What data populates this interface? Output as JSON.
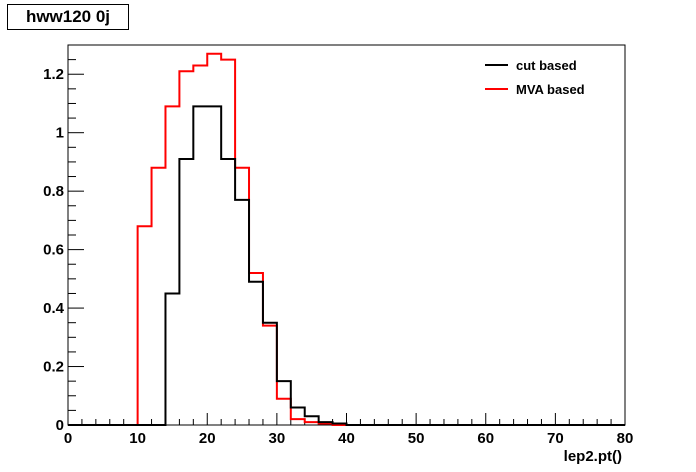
{
  "chart_data": {
    "type": "line",
    "style": "step-histogram",
    "title": "hww120 0j",
    "xlabel": "lep2.pt()",
    "ylabel": "",
    "xlim": [
      0,
      80
    ],
    "ylim": [
      0,
      1.3
    ],
    "bin_width": 2,
    "x_ticks": [
      0,
      10,
      20,
      30,
      40,
      50,
      60,
      70,
      80
    ],
    "y_ticks": [
      0,
      0.2,
      0.4,
      0.6,
      0.8,
      1,
      1.2
    ],
    "x_tick_labels": [
      "0",
      "10",
      "20",
      "30",
      "40",
      "50",
      "60",
      "70",
      "80"
    ],
    "y_tick_labels": [
      "0",
      "0.2",
      "0.4",
      "0.6",
      "0.8",
      "1",
      "1.2"
    ],
    "grid": false,
    "legend_position": "top-right",
    "series": [
      {
        "name": "cut based",
        "color": "#000000",
        "bin_edges": [
          0,
          2,
          4,
          6,
          8,
          10,
          12,
          14,
          16,
          18,
          20,
          22,
          24,
          26,
          28,
          30,
          32,
          34,
          36,
          38,
          40,
          42,
          44,
          46,
          48,
          50,
          52,
          54,
          56,
          58,
          60,
          62,
          64,
          66,
          68,
          70,
          72,
          74,
          76,
          78,
          80
        ],
        "values": [
          0,
          0,
          0,
          0,
          0,
          0,
          0,
          0.45,
          0.91,
          1.09,
          1.09,
          0.91,
          0.77,
          0.49,
          0.35,
          0.15,
          0.06,
          0.03,
          0.01,
          0.005,
          0,
          0,
          0,
          0,
          0,
          0,
          0,
          0,
          0,
          0,
          0,
          0,
          0,
          0,
          0,
          0,
          0,
          0,
          0,
          0
        ]
      },
      {
        "name": "MVA based",
        "color": "#ff0000",
        "bin_edges": [
          0,
          2,
          4,
          6,
          8,
          10,
          12,
          14,
          16,
          18,
          20,
          22,
          24,
          26,
          28,
          30,
          32,
          34,
          36,
          38,
          40,
          42,
          44,
          46,
          48,
          50,
          52,
          54,
          56,
          58,
          60,
          62,
          64,
          66,
          68,
          70,
          72,
          74,
          76,
          78,
          80
        ],
        "values": [
          0,
          0,
          0,
          0,
          0,
          0.68,
          0.88,
          1.09,
          1.21,
          1.23,
          1.27,
          1.25,
          0.88,
          0.52,
          0.34,
          0.09,
          0.02,
          0.01,
          0.005,
          0,
          0,
          0,
          0,
          0,
          0,
          0,
          0,
          0,
          0,
          0,
          0,
          0,
          0,
          0,
          0,
          0,
          0,
          0,
          0,
          0
        ]
      }
    ]
  }
}
